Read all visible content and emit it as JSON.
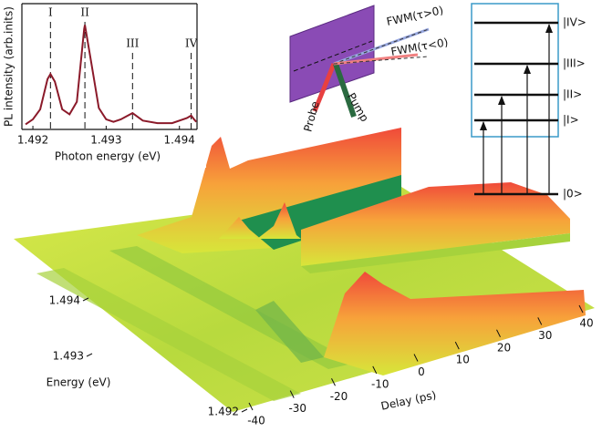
{
  "chart_data": [
    {
      "type": "line",
      "xlabel": "Photon energy (eV)",
      "ylabel": "PL intensity (arb.inits)",
      "xlim": [
        1.49185,
        1.49424
      ],
      "xticks": [
        1.492,
        1.493,
        1.494
      ],
      "ylim": [
        0,
        1
      ],
      "peaks": [
        {
          "label": "I",
          "x": 1.49224
        },
        {
          "label": "II",
          "x": 1.49271
        },
        {
          "label": "III",
          "x": 1.49336
        },
        {
          "label": "IV",
          "x": 1.49416
        }
      ],
      "x": [
        1.4919,
        1.492,
        1.4921,
        1.4922,
        1.49224,
        1.4923,
        1.4924,
        1.4925,
        1.4926,
        1.4927,
        1.49271,
        1.4928,
        1.4929,
        1.493,
        1.4931,
        1.4932,
        1.49336,
        1.4935,
        1.4937,
        1.4939,
        1.4941,
        1.49416,
        1.4942,
        1.49423
      ],
      "series": [
        {
          "color": "#8b1a2a",
          "values": [
            0.04,
            0.08,
            0.16,
            0.4,
            0.44,
            0.38,
            0.16,
            0.12,
            0.22,
            0.8,
            0.83,
            0.52,
            0.17,
            0.08,
            0.06,
            0.08,
            0.13,
            0.07,
            0.05,
            0.05,
            0.09,
            0.11,
            0.08,
            0.06
          ]
        }
      ]
    },
    {
      "type": "surface",
      "ylabel": "Energy (eV)",
      "yticks": [
        1.494,
        1.493,
        1.492
      ],
      "xlabel": "Delay (ps)",
      "xlim": [
        -40,
        40
      ],
      "xticks": [
        -40,
        -30,
        -20,
        -10,
        0,
        10,
        20,
        30,
        40
      ]
    }
  ],
  "schematic": {
    "fwm_positive": "FWM(τ>0)",
    "fwm_negative": "FWM(τ<0)",
    "probe": "Probe",
    "pump": "Pump"
  },
  "levels": [
    "|IV>",
    "|III>",
    "|II>",
    "|I>",
    "|0>"
  ]
}
